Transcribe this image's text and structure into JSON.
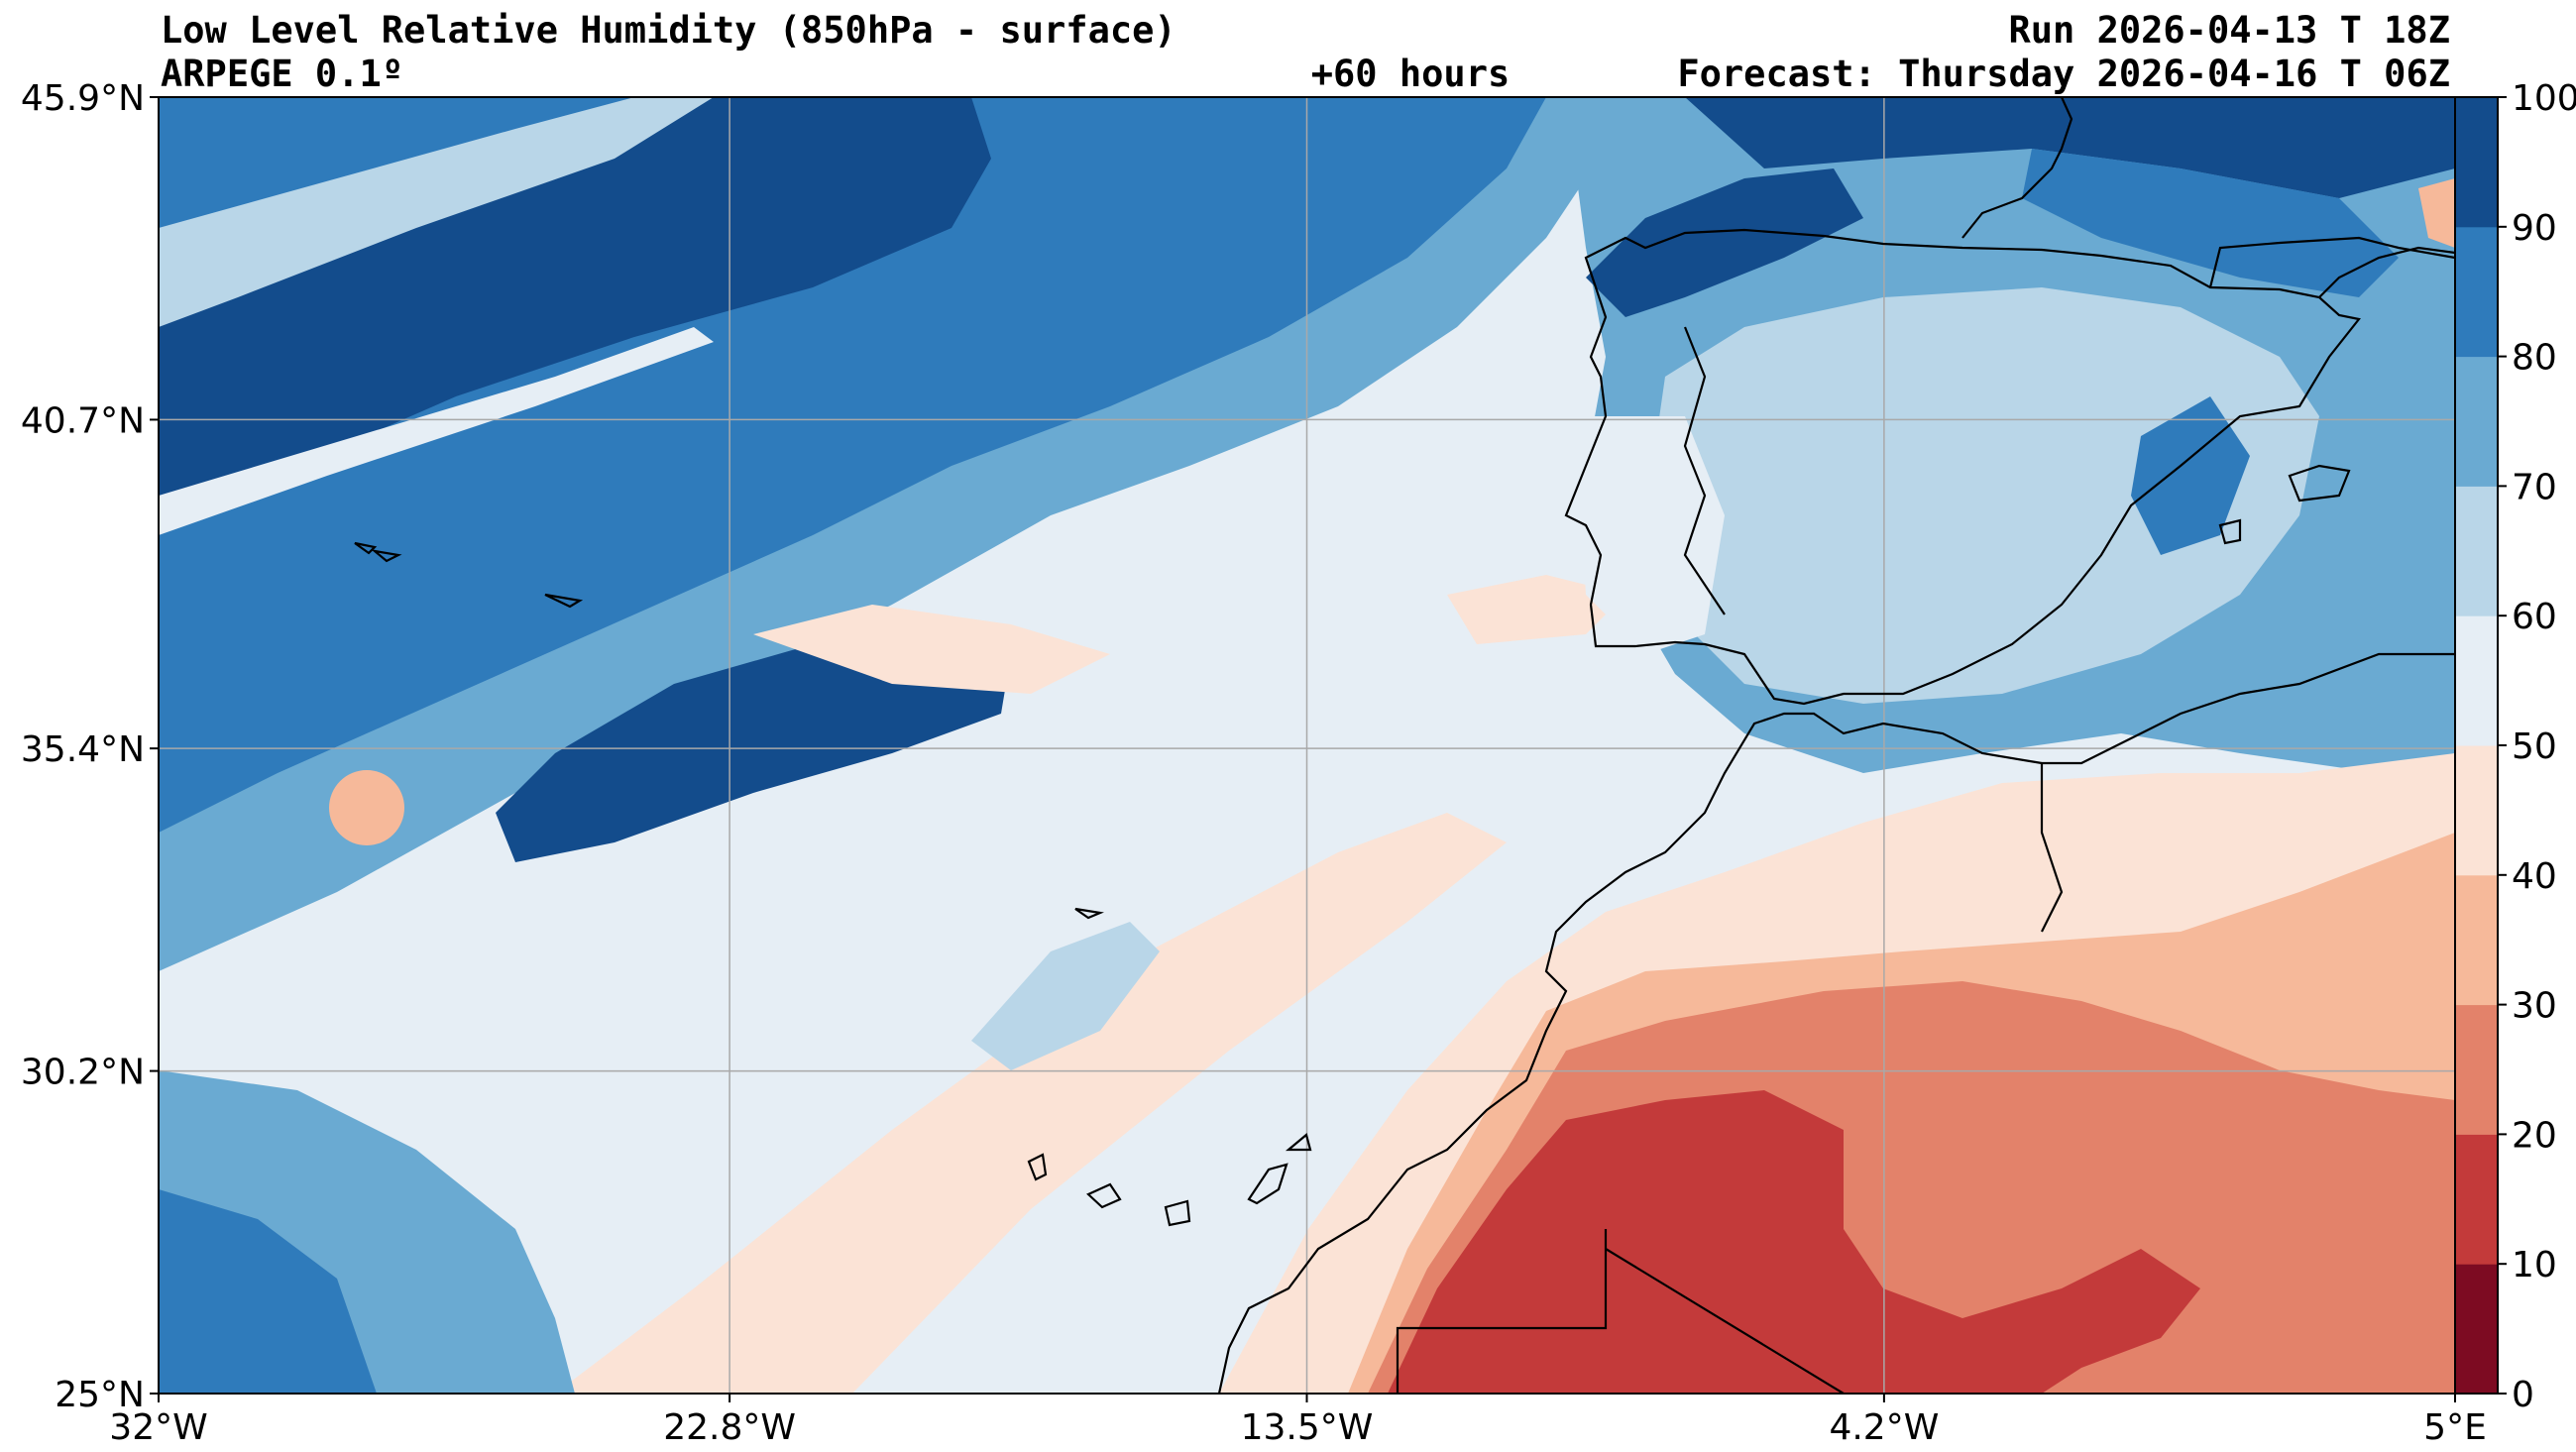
{
  "header": {
    "title": "Low Level Relative Humidity (850hPa - surface)",
    "model": "ARPEGE 0.1º",
    "lead_time": "+60 hours",
    "run": "Run 2026-04-13 T 18Z",
    "forecast": "Forecast: Thursday 2026-04-16 T 06Z"
  },
  "map": {
    "lon_range": [
      -32,
      5
    ],
    "lat_range": [
      25,
      45.9
    ],
    "lon_ticks": [
      {
        "value": -32,
        "label": "32°W"
      },
      {
        "value": -22.8,
        "label": "22.8°W"
      },
      {
        "value": -13.5,
        "label": "13.5°W"
      },
      {
        "value": -4.2,
        "label": "4.2°W"
      },
      {
        "value": 5,
        "label": "5°E"
      }
    ],
    "lat_ticks": [
      {
        "value": 45.9,
        "label": "45.9°N"
      },
      {
        "value": 40.7,
        "label": "40.7°N"
      },
      {
        "value": 35.4,
        "label": "35.4°N"
      },
      {
        "value": 30.2,
        "label": "30.2°N"
      },
      {
        "value": 25,
        "label": "25°N"
      }
    ],
    "grid": true
  },
  "colorbar": {
    "ticks": [
      "0",
      "10",
      "20",
      "30",
      "40",
      "50",
      "60",
      "70",
      "80",
      "90",
      "100"
    ],
    "colors": [
      "#7d0b22",
      "#c33a3a",
      "#e3826a",
      "#f6b99a",
      "#fbe3d6",
      "#e6eef5",
      "#b9d6e8",
      "#6aaad2",
      "#2f7bbb",
      "#134c8c"
    ]
  }
}
